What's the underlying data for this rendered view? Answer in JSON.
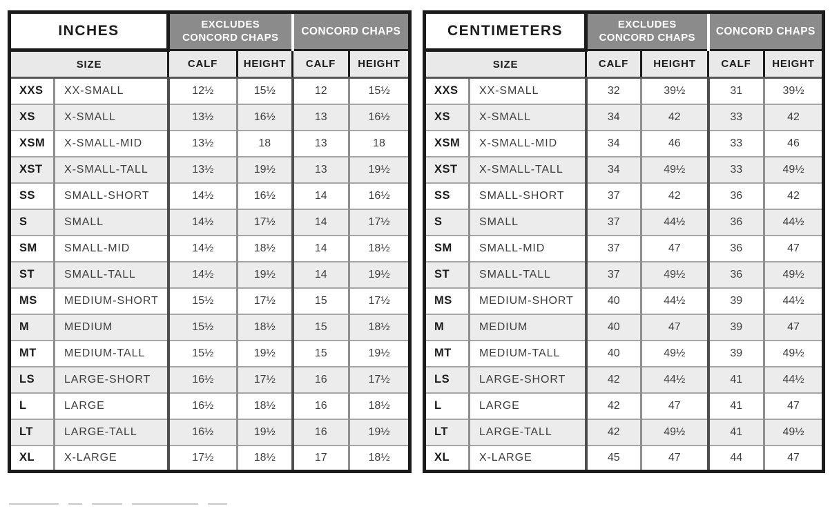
{
  "colors": {
    "group_header_bg": "#8b8b8b",
    "group_header_text": "#ffffff",
    "subheader_bg": "#e9e9e9",
    "row_alt_bg": "#ececec",
    "border_black": "#1b1b1b"
  },
  "tables": [
    {
      "unit_label": "INCHES",
      "excludes_line1": "EXCLUDES",
      "excludes_line2": "CONCORD CHAPS",
      "concord_header": "CONCORD CHAPS",
      "size_header": "SIZE",
      "columns": [
        "CALF",
        "HEIGHT",
        "CALF",
        "HEIGHT"
      ],
      "rows": [
        {
          "code": "XXS",
          "name": "XX-SMALL",
          "values": [
            "12½",
            "15½",
            "12",
            "15½"
          ]
        },
        {
          "code": "XS",
          "name": "X-SMALL",
          "values": [
            "13½",
            "16½",
            "13",
            "16½"
          ]
        },
        {
          "code": "XSM",
          "name": "X-SMALL-MID",
          "values": [
            "13½",
            "18",
            "13",
            "18"
          ]
        },
        {
          "code": "XST",
          "name": "X-SMALL-TALL",
          "values": [
            "13½",
            "19½",
            "13",
            "19½"
          ]
        },
        {
          "code": "SS",
          "name": "SMALL-SHORT",
          "values": [
            "14½",
            "16½",
            "14",
            "16½"
          ]
        },
        {
          "code": "S",
          "name": "SMALL",
          "values": [
            "14½",
            "17½",
            "14",
            "17½"
          ]
        },
        {
          "code": "SM",
          "name": "SMALL-MID",
          "values": [
            "14½",
            "18½",
            "14",
            "18½"
          ]
        },
        {
          "code": "ST",
          "name": "SMALL-TALL",
          "values": [
            "14½",
            "19½",
            "14",
            "19½"
          ]
        },
        {
          "code": "MS",
          "name": "MEDIUM-SHORT",
          "values": [
            "15½",
            "17½",
            "15",
            "17½"
          ]
        },
        {
          "code": "M",
          "name": "MEDIUM",
          "values": [
            "15½",
            "18½",
            "15",
            "18½"
          ]
        },
        {
          "code": "MT",
          "name": "MEDIUM-TALL",
          "values": [
            "15½",
            "19½",
            "15",
            "19½"
          ]
        },
        {
          "code": "LS",
          "name": "LARGE-SHORT",
          "values": [
            "16½",
            "17½",
            "16",
            "17½"
          ]
        },
        {
          "code": "L",
          "name": "LARGE",
          "values": [
            "16½",
            "18½",
            "16",
            "18½"
          ]
        },
        {
          "code": "LT",
          "name": "LARGE-TALL",
          "values": [
            "16½",
            "19½",
            "16",
            "19½"
          ]
        },
        {
          "code": "XL",
          "name": "X-LARGE",
          "values": [
            "17½",
            "18½",
            "17",
            "18½"
          ]
        }
      ]
    },
    {
      "unit_label": "CENTIMETERS",
      "excludes_line1": "EXCLUDES",
      "excludes_line2": "CONCORD CHAPS",
      "concord_header": "CONCORD CHAPS",
      "size_header": "SIZE",
      "columns": [
        "CALF",
        "HEIGHT",
        "CALF",
        "HEIGHT"
      ],
      "rows": [
        {
          "code": "XXS",
          "name": "XX-SMALL",
          "values": [
            "32",
            "39½",
            "31",
            "39½"
          ]
        },
        {
          "code": "XS",
          "name": "X-SMALL",
          "values": [
            "34",
            "42",
            "33",
            "42"
          ]
        },
        {
          "code": "XSM",
          "name": "X-SMALL-MID",
          "values": [
            "34",
            "46",
            "33",
            "46"
          ]
        },
        {
          "code": "XST",
          "name": "X-SMALL-TALL",
          "values": [
            "34",
            "49½",
            "33",
            "49½"
          ]
        },
        {
          "code": "SS",
          "name": "SMALL-SHORT",
          "values": [
            "37",
            "42",
            "36",
            "42"
          ]
        },
        {
          "code": "S",
          "name": "SMALL",
          "values": [
            "37",
            "44½",
            "36",
            "44½"
          ]
        },
        {
          "code": "SM",
          "name": "SMALL-MID",
          "values": [
            "37",
            "47",
            "36",
            "47"
          ]
        },
        {
          "code": "ST",
          "name": "SMALL-TALL",
          "values": [
            "37",
            "49½",
            "36",
            "49½"
          ]
        },
        {
          "code": "MS",
          "name": "MEDIUM-SHORT",
          "values": [
            "40",
            "44½",
            "39",
            "44½"
          ]
        },
        {
          "code": "M",
          "name": "MEDIUM",
          "values": [
            "40",
            "47",
            "39",
            "47"
          ]
        },
        {
          "code": "MT",
          "name": "MEDIUM-TALL",
          "values": [
            "40",
            "49½",
            "39",
            "49½"
          ]
        },
        {
          "code": "LS",
          "name": "LARGE-SHORT",
          "values": [
            "42",
            "44½",
            "41",
            "44½"
          ]
        },
        {
          "code": "L",
          "name": "LARGE",
          "values": [
            "42",
            "47",
            "41",
            "47"
          ]
        },
        {
          "code": "LT",
          "name": "LARGE-TALL",
          "values": [
            "42",
            "49½",
            "41",
            "49½"
          ]
        },
        {
          "code": "XL",
          "name": "X-LARGE",
          "values": [
            "45",
            "47",
            "44",
            "47"
          ]
        }
      ]
    }
  ]
}
